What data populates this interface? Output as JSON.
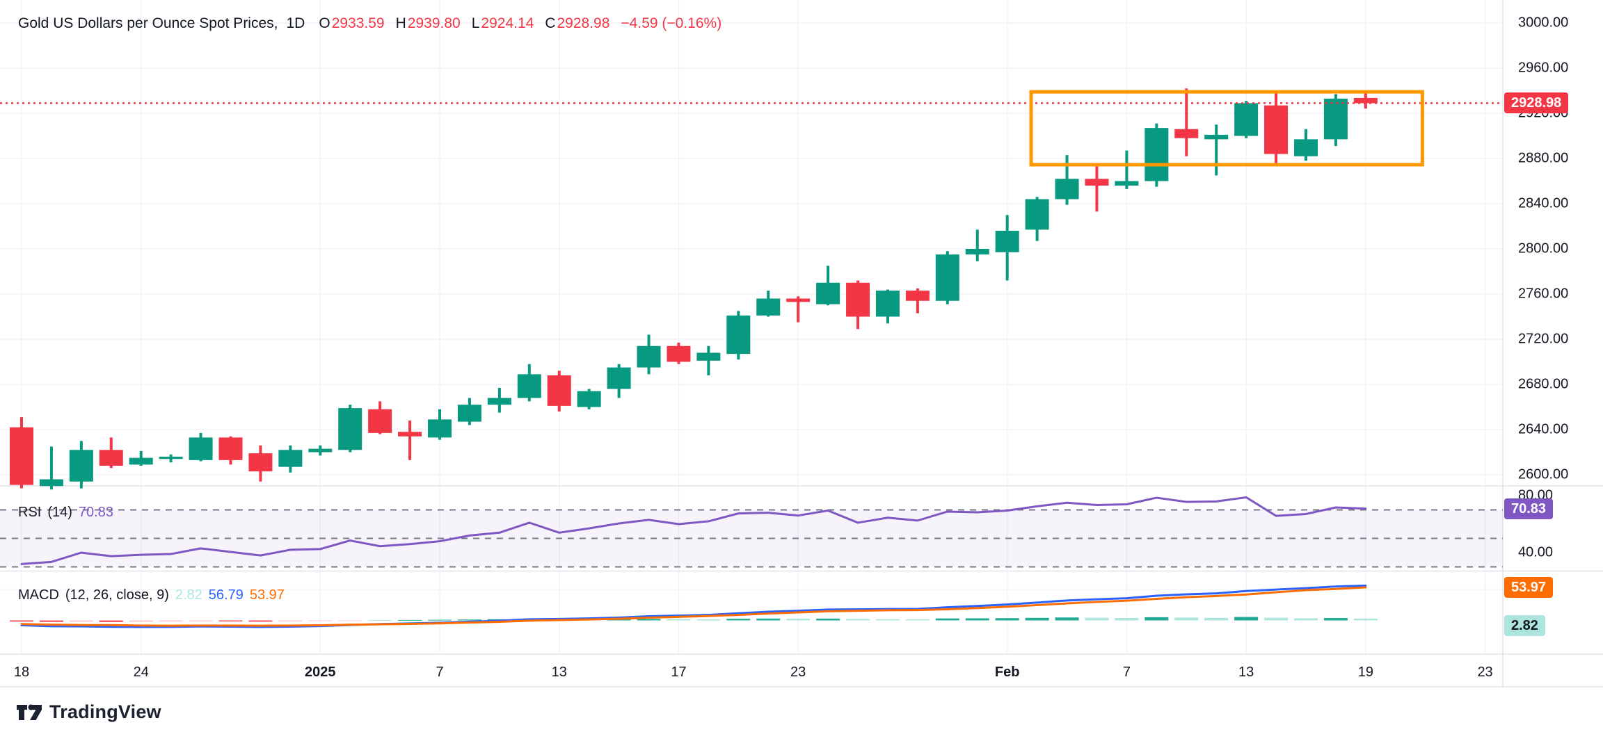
{
  "legend": {
    "title": "Gold US Dollars per Ounce Spot Prices,",
    "timeframe": "1D",
    "open_label": "O",
    "open": "2933.59",
    "high_label": "H",
    "high": "2939.80",
    "low_label": "L",
    "low": "2924.14",
    "close_label": "C",
    "close": "2928.98",
    "change": "−4.59 (−0.16%)"
  },
  "price_axis": {
    "ticks": [
      3000.0,
      2960.0,
      2920.0,
      2880.0,
      2840.0,
      2800.0,
      2760.0,
      2720.0,
      2680.0,
      2640.0,
      2600.0
    ],
    "last_price_badge": "2928.98"
  },
  "time_axis": {
    "ticks": [
      {
        "label": "18",
        "bar": 1,
        "bold": false
      },
      {
        "label": "24",
        "bar": 5,
        "bold": false
      },
      {
        "label": "2025",
        "bar": 11,
        "bold": true
      },
      {
        "label": "7",
        "bar": 15,
        "bold": false
      },
      {
        "label": "13",
        "bar": 19,
        "bold": false
      },
      {
        "label": "17",
        "bar": 23,
        "bold": false
      },
      {
        "label": "23",
        "bar": 27,
        "bold": false
      },
      {
        "label": "Feb",
        "bar": 34,
        "bold": true
      },
      {
        "label": "7",
        "bar": 38,
        "bold": false
      },
      {
        "label": "13",
        "bar": 42,
        "bold": false
      },
      {
        "label": "19",
        "bar": 46,
        "bold": false
      },
      {
        "label": "23",
        "bar": 50,
        "bold": false
      }
    ]
  },
  "rsi_panel": {
    "name": "RSI",
    "params": "(14)",
    "value": "70.83",
    "levels": [
      70,
      50,
      30
    ],
    "axis_labels": [
      80.0,
      40.0
    ],
    "badge": "70.83"
  },
  "macd_panel": {
    "name": "MACD",
    "params": "(12, 26, close, 9)",
    "hist_value": "2.82",
    "macd_value": "56.79",
    "signal_value": "53.97",
    "badge_signal": "53.97",
    "badge_hist": "2.82"
  },
  "footer": {
    "brand": "TradingView"
  },
  "colors": {
    "up": "#089981",
    "down": "#F23645",
    "grid": "#F0F3FA",
    "separator": "#E0E3EB",
    "text": "#131722",
    "price_line": "#F23645",
    "price_badge": "#F23645",
    "rsi_line": "#7E57C2",
    "rsi_band_fill": "rgba(126,87,194,0.07)",
    "rsi_dash": "#787B86",
    "macd_line": "#2962FF",
    "signal_line": "#FF6D00",
    "hist_grow_above": "#22AB94",
    "hist_fall_above": "#ACE5DC",
    "hist_fall_below": "#FCCBCD",
    "hist_grow_below": "#F7525F",
    "hist_badge_bg": "#ACE5DC",
    "hist_badge_text": "#131722",
    "box": "#FF9800"
  },
  "chart_data": {
    "type": "candlestick",
    "title": "Gold US Dollars per Ounce Spot Prices",
    "timeframe": "1D",
    "ylim": [
      2591,
      3020
    ],
    "grid": true,
    "candles_ohlc": [
      [
        2642,
        2651,
        2588,
        2591
      ],
      [
        2590,
        2625,
        2587,
        2596
      ],
      [
        2594,
        2630,
        2588,
        2622
      ],
      [
        2622,
        2633,
        2606,
        2608
      ],
      [
        2609,
        2621,
        2608,
        2615
      ],
      [
        2614,
        2618,
        2611,
        2616
      ],
      [
        2613,
        2637,
        2612,
        2633
      ],
      [
        2633,
        2634,
        2609,
        2613
      ],
      [
        2619,
        2626,
        2594,
        2603
      ],
      [
        2607,
        2626,
        2602,
        2622
      ],
      [
        2620,
        2626,
        2617,
        2623
      ],
      [
        2622,
        2662,
        2620,
        2659
      ],
      [
        2658,
        2665,
        2636,
        2637
      ],
      [
        2638,
        2648,
        2613,
        2634
      ],
      [
        2633,
        2658,
        2631,
        2649
      ],
      [
        2647,
        2668,
        2644,
        2662
      ],
      [
        2662,
        2677,
        2655,
        2668
      ],
      [
        2668,
        2698,
        2665,
        2689
      ],
      [
        2688,
        2692,
        2656,
        2661
      ],
      [
        2660,
        2676,
        2658,
        2674
      ],
      [
        2676,
        2698,
        2668,
        2695
      ],
      [
        2695,
        2724,
        2689,
        2714
      ],
      [
        2714,
        2717,
        2698,
        2700
      ],
      [
        2701,
        2714,
        2688,
        2708
      ],
      [
        2707,
        2745,
        2702,
        2741
      ],
      [
        2741,
        2763,
        2740,
        2756
      ],
      [
        2756,
        2758,
        2735,
        2753
      ],
      [
        2751,
        2785,
        2750,
        2770
      ],
      [
        2770,
        2772,
        2729,
        2740
      ],
      [
        2740,
        2764,
        2734,
        2763
      ],
      [
        2763,
        2765,
        2743,
        2754
      ],
      [
        2754,
        2798,
        2751,
        2795
      ],
      [
        2795,
        2817,
        2789,
        2800
      ],
      [
        2797,
        2830,
        2772,
        2816
      ],
      [
        2817,
        2846,
        2807,
        2844
      ],
      [
        2844,
        2883,
        2839,
        2862
      ],
      [
        2862,
        2873,
        2833,
        2856
      ],
      [
        2856,
        2887,
        2853,
        2860
      ],
      [
        2860,
        2911,
        2855,
        2907
      ],
      [
        2906,
        2942,
        2882,
        2898
      ],
      [
        2897,
        2910,
        2865,
        2901
      ],
      [
        2900,
        2931,
        2898,
        2929
      ],
      [
        2927,
        2940,
        2876,
        2884
      ],
      [
        2882,
        2906,
        2878,
        2897
      ],
      [
        2897,
        2937,
        2891,
        2933
      ],
      [
        2933.59,
        2939.8,
        2924.14,
        2928.98
      ]
    ],
    "rsi_14": [
      32,
      33.5,
      40,
      37.5,
      38.5,
      39,
      43,
      40.5,
      38,
      42,
      42.5,
      48.5,
      44.5,
      46,
      48,
      52,
      54,
      61,
      54,
      57,
      60.5,
      63,
      60,
      62,
      67.5,
      68,
      66,
      69.5,
      61,
      64.5,
      62.5,
      68.8,
      68.3,
      69.5,
      72.5,
      75,
      73.4,
      73.9,
      78.5,
      75.6,
      75.9,
      78.8,
      65.8,
      67.1,
      71.7,
      70.83
    ],
    "macd_line": [
      -8,
      -9.5,
      -9.8,
      -10.5,
      -10.8,
      -10.6,
      -10.0,
      -10.2,
      -10.8,
      -10.2,
      -9.2,
      -7.5,
      -6.0,
      -5.0,
      -3.8,
      -2.2,
      -0.6,
      1.8,
      2.4,
      3.2,
      4.6,
      6.8,
      7.8,
      9.0,
      11.6,
      14.2,
      15.8,
      17.8,
      18.0,
      18.6,
      18.8,
      21.4,
      23.6,
      26.0,
      29.2,
      32.6,
      34.6,
      36.2,
      40.4,
      42.6,
      44.2,
      48.0,
      50.5,
      52.8,
      55.5,
      56.79
    ],
    "macd_signal": [
      -6,
      -6.9,
      -7.6,
      -7.7,
      -8.4,
      -8.6,
      -8.4,
      -8.4,
      -8.6,
      -8.4,
      -8.0,
      -7.0,
      -6.4,
      -5.7,
      -4.8,
      -3.6,
      -2.3,
      -0.4,
      0.6,
      1.6,
      2.7,
      4.4,
      5.8,
      7.2,
      9.0,
      11.2,
      13.1,
      14.9,
      15.8,
      16.6,
      16.9,
      18.2,
      20.2,
      22.3,
      25.0,
      27.8,
      30.2,
      32.2,
      35.2,
      38.0,
      40.0,
      42.4,
      46.1,
      49.4,
      51.5,
      53.97
    ],
    "macd_hist": [
      -2.0,
      -2.6,
      -2.2,
      -2.8,
      -2.4,
      -2.0,
      -1.6,
      -1.8,
      -2.2,
      -1.8,
      -1.2,
      -0.5,
      0.4,
      0.7,
      1.0,
      1.4,
      1.7,
      2.2,
      1.8,
      1.6,
      1.9,
      2.4,
      2.0,
      1.8,
      2.6,
      3.0,
      2.7,
      2.9,
      2.2,
      2.0,
      1.9,
      3.2,
      3.4,
      3.7,
      4.2,
      4.8,
      4.4,
      4.0,
      5.2,
      4.6,
      4.2,
      5.6,
      4.4,
      3.4,
      4.0,
      2.82
    ],
    "last_close": 2928.98,
    "annotations": {
      "orange_box": {
        "price_top": 2939,
        "price_bottom": 2874.5,
        "bar_start": 34.8,
        "bar_end": 47.9
      }
    }
  }
}
